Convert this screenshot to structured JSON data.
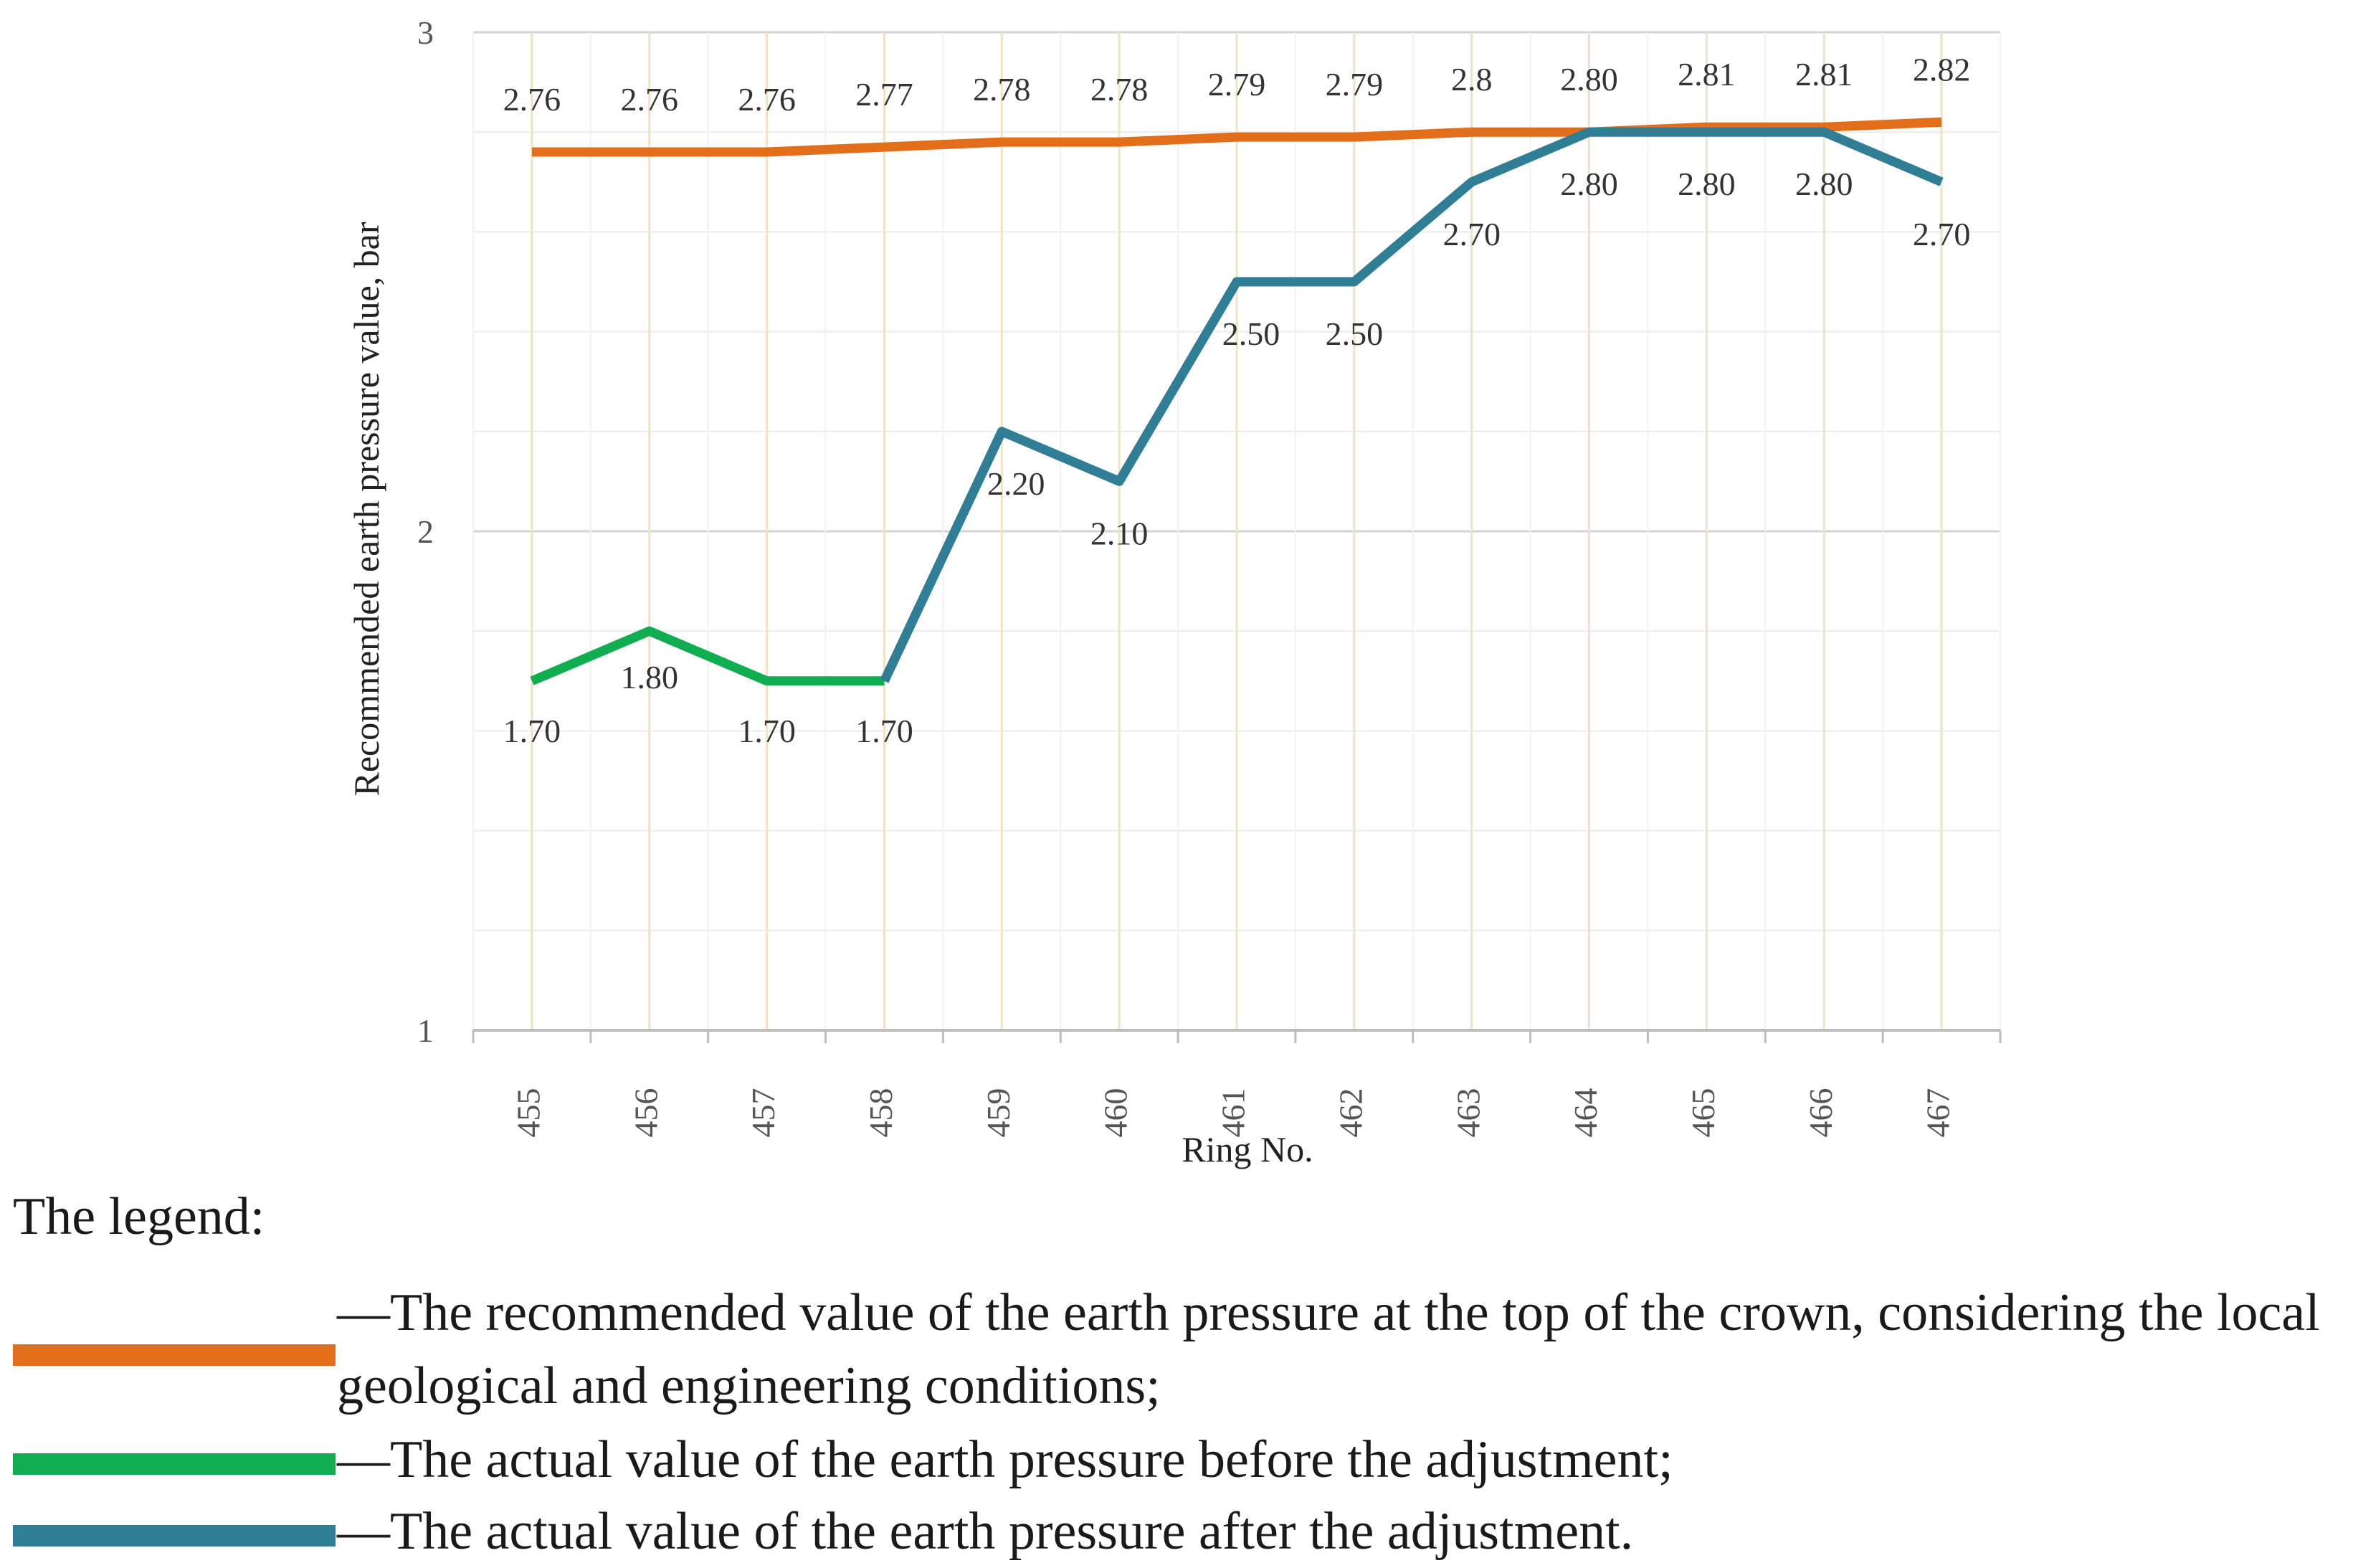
{
  "chart_data": {
    "type": "line",
    "categories": [
      "455",
      "456",
      "457",
      "458",
      "459",
      "460",
      "461",
      "462",
      "463",
      "464",
      "465",
      "466",
      "467"
    ],
    "xlabel": "Ring No.",
    "ylabel": "Recommended earth pressure value, bar",
    "ylim": [
      1,
      3
    ],
    "yticks": [
      "1",
      "2",
      "3"
    ],
    "grid": true,
    "series": [
      {
        "name": "recommended",
        "color": "#E26E1B",
        "values": [
          2.76,
          2.76,
          2.76,
          2.77,
          2.78,
          2.78,
          2.79,
          2.79,
          2.8,
          2.8,
          2.81,
          2.81,
          2.82
        ],
        "labels": [
          "2.76",
          "2.76",
          "2.76",
          "2.77",
          "2.78",
          "2.78",
          "2.79",
          "2.79",
          "2.8",
          "2.80",
          "2.81",
          "2.81",
          "2.82"
        ]
      },
      {
        "name": "before",
        "color": "#10AE50",
        "values": [
          1.7,
          1.8,
          1.7,
          1.7,
          null,
          null,
          null,
          null,
          null,
          null,
          null,
          null,
          null
        ],
        "labels": [
          "1.70",
          "1.80",
          "1.70",
          "1.70",
          "",
          "",
          "",
          "",
          "",
          "",
          "",
          "",
          ""
        ]
      },
      {
        "name": "after",
        "color": "#2F7E95",
        "values": [
          null,
          null,
          null,
          1.7,
          2.2,
          2.1,
          2.5,
          2.5,
          2.7,
          2.8,
          2.8,
          2.8,
          2.7
        ],
        "labels": [
          "",
          "",
          "",
          "",
          "2.20",
          "2.10",
          "2.50",
          "2.50",
          "2.70",
          "2.80",
          "2.80",
          "2.80",
          "2.70"
        ]
      }
    ]
  },
  "legend": {
    "title": "The legend:",
    "items": [
      {
        "color": "#E26E1B",
        "text": "—The recommended value of the earth pressure at the top of the crown, considering the local geological and engineering conditions;"
      },
      {
        "color": "#10AE50",
        "text": "—The actual value of the earth pressure before the adjustment;"
      },
      {
        "color": "#2F7E95",
        "text": "—The actual value of the earth pressure after the adjustment."
      }
    ]
  }
}
